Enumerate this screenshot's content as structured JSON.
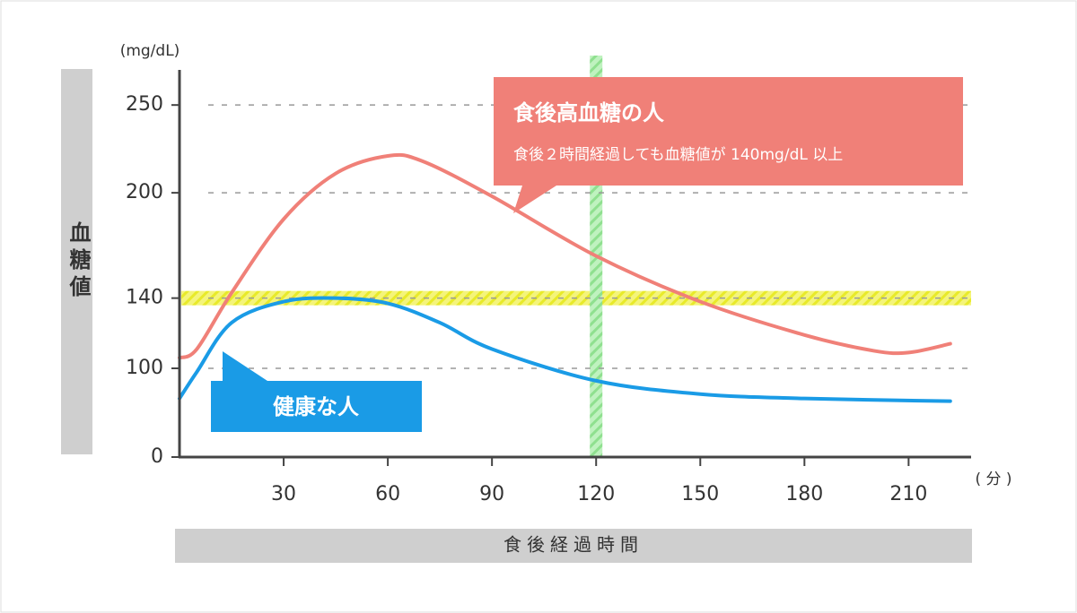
{
  "chart_data": {
    "type": "line",
    "y_unit": "(mg/dL)",
    "x_unit": "( 分 )",
    "y_label": "血糖値",
    "x_label": "食後経過時間",
    "annotation": "食後２時間経過しても血糖値が 140mg/dL 以上",
    "x": [
      0,
      5,
      15,
      30,
      45,
      60,
      70,
      75,
      90,
      120,
      150,
      180,
      200,
      210,
      222
    ],
    "series": [
      {
        "name": "食後高血糖の人",
        "color": "#f08078",
        "values": [
          106,
          111,
          143,
          185,
          211,
          221,
          218,
          null,
          198,
          164,
          138,
          119,
          110,
          109,
          114
        ]
      },
      {
        "name": "健康な人",
        "color": "#1a9be6",
        "values": [
          66,
          96,
          126,
          138,
          140,
          137,
          null,
          126,
          111,
          86,
          71,
          66,
          null,
          null,
          63
        ]
      }
    ],
    "xlim": [
      0,
      228
    ],
    "xticks": [
      30,
      60,
      90,
      120,
      150,
      180,
      210
    ],
    "ylim": [
      0,
      270
    ],
    "yticks": [
      0,
      100,
      140,
      200,
      250
    ],
    "highlight_y": 140,
    "highlight_x": 120,
    "grid": true
  }
}
